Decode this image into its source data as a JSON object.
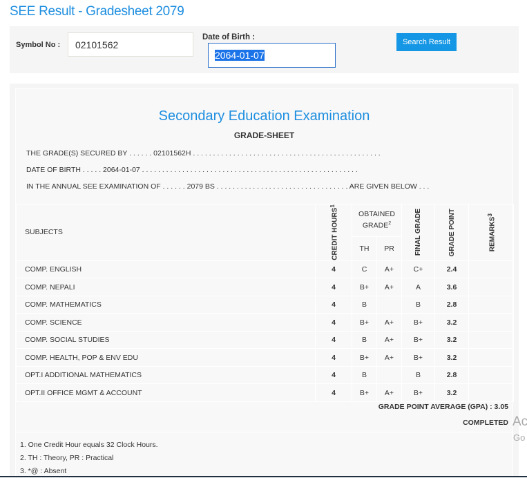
{
  "title": "SEE Result - Gradesheet 2079",
  "search": {
    "symbol_label": "Symbol No :",
    "symbol_value": "02101562",
    "dob_label": "Date of Birth :",
    "dob_value": "2064-01-07",
    "button": "Search Result"
  },
  "sheet": {
    "heading": "Secondary Education Examination",
    "subheading": "GRADE-SHEET",
    "line1": "THE GRADE(S) SECURED BY . . . . . . 02101562H . . . . . . . . . . . . . . . . . . . . . . . . . . . . . . . . . . . . . . . . . . . . . . .",
    "line2": "DATE OF BIRTH . . . . . 2064-01-07 . . . . . . . . . . . . . . . . . . . . . . . . . . . . . . . . . . . . . . . . . . . . . . . . . . . . . .",
    "line3": "IN THE ANNUAL SEE EXAMINATION OF . . . . . . 2079 BS . . . . . . . . . . . . . . . . . . . . . . . . . . . . . . . . . ARE GIVEN BELOW . . .",
    "headers": {
      "subjects": "SUBJECTS",
      "credit": "CREDIT HOURS",
      "credit_sup": "1",
      "obtained": "OBTAINED GRADE",
      "obtained_sup": "2",
      "th": "TH",
      "pr": "PR",
      "final": "FINAL GRADE",
      "point": "GRADE POINT",
      "remarks": "REMARKS",
      "remarks_sup": "3"
    },
    "rows": [
      [
        "COMP. ENGLISH",
        "4",
        "C",
        "A+",
        "C+",
        "2.4",
        ""
      ],
      [
        "COMP. NEPALI",
        "4",
        "B+",
        "A+",
        "A",
        "3.6",
        ""
      ],
      [
        "COMP. MATHEMATICS",
        "4",
        "B",
        "",
        "B",
        "2.8",
        ""
      ],
      [
        "COMP. SCIENCE",
        "4",
        "B+",
        "A+",
        "B+",
        "3.2",
        ""
      ],
      [
        "COMP. SOCIAL STUDIES",
        "4",
        "B",
        "A+",
        "B+",
        "3.2",
        ""
      ],
      [
        "COMP. HEALTH, POP & ENV EDU",
        "4",
        "B+",
        "A+",
        "B+",
        "3.2",
        ""
      ],
      [
        "OPT.I ADDITIONAL MATHEMATICS",
        "4",
        "B",
        "",
        "B",
        "2.8",
        ""
      ],
      [
        "OPT.II OFFICE MGMT & ACCOUNT",
        "4",
        "B+",
        "A+",
        "B+",
        "3.2",
        ""
      ]
    ],
    "gpa": "GRADE POINT AVERAGE (GPA) : 3.05",
    "status": "COMPLETED",
    "notes": [
      "1. One Credit Hour equals 32 Clock Hours.",
      "2. TH : Theory, PR : Practical",
      "3. *@ : Absent"
    ]
  },
  "watermark": {
    "line1": "Ac",
    "line2": "Go"
  }
}
